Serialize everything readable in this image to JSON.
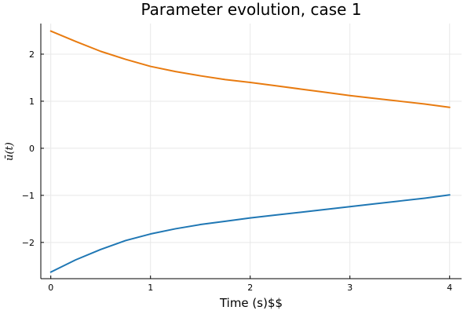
{
  "chart_data": {
    "type": "line",
    "title": "Parameter evolution, case 1",
    "xlabel": "Time (s)$$",
    "ylabel": "ū(t)",
    "xlim": [
      -0.1,
      4.12
    ],
    "ylim": [
      -2.77,
      2.65
    ],
    "grid": true,
    "xticks": [
      0,
      1,
      2,
      3,
      4
    ],
    "xtick_labels": [
      "0",
      "1",
      "2",
      "3",
      "4"
    ],
    "yticks": [
      -2,
      -1,
      0,
      1,
      2
    ],
    "ytick_labels": [
      "−2",
      "−1",
      "0",
      "1",
      "2"
    ],
    "x": [
      0,
      0.25,
      0.5,
      0.75,
      1.0,
      1.25,
      1.5,
      1.75,
      2.0,
      2.25,
      2.5,
      2.75,
      3.0,
      3.25,
      3.5,
      3.75,
      4.0
    ],
    "series": [
      {
        "color": "#e87b10",
        "values": [
          2.49,
          2.27,
          2.06,
          1.89,
          1.74,
          1.63,
          1.54,
          1.46,
          1.4,
          1.33,
          1.26,
          1.19,
          1.12,
          1.06,
          1.0,
          0.94,
          0.87
        ]
      },
      {
        "color": "#1f77b4",
        "values": [
          -2.63,
          -2.37,
          -2.15,
          -1.96,
          -1.82,
          -1.71,
          -1.62,
          -1.55,
          -1.48,
          -1.42,
          -1.36,
          -1.3,
          -1.24,
          -1.18,
          -1.12,
          -1.06,
          -0.99
        ]
      }
    ]
  }
}
